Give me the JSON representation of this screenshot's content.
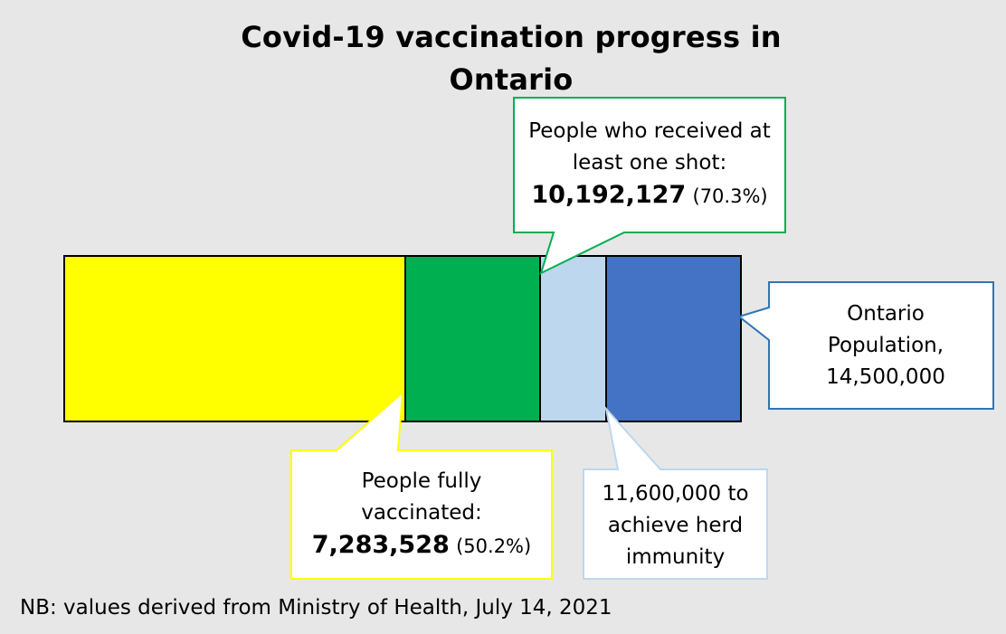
{
  "chart_data": {
    "type": "bar",
    "orientation": "horizontal-stacked",
    "title_lines": [
      "Covid-19 vaccination progress in",
      "Ontario"
    ],
    "segments": [
      {
        "key": "fully_vaccinated",
        "cumulative_value": 7283528,
        "color": "#ffff00"
      },
      {
        "key": "at_least_one_shot",
        "cumulative_value": 10192127,
        "color": "#00b050"
      },
      {
        "key": "herd_immunity_target",
        "cumulative_value": 11600000,
        "color": "#bdd7ee"
      },
      {
        "key": "population",
        "cumulative_value": 14500000,
        "color": "#4472c4"
      }
    ],
    "total": 14500000,
    "annotations": {
      "one_shot": {
        "lines": [
          "People who received at",
          "least one shot:"
        ],
        "value": "10,192,127",
        "pct": "(70.3%)",
        "border_color": "#00b050"
      },
      "population": {
        "lines": [
          "Ontario",
          "Population,",
          "14,500,000"
        ],
        "border_color": "#2e75b6"
      },
      "fully": {
        "lines": [
          "People fully",
          "vaccinated:"
        ],
        "value": "7,283,528",
        "pct": "(50.2%)",
        "border_color": "#ffff00"
      },
      "herd": {
        "lines": [
          "11,600,000 to",
          "achieve herd",
          "immunity"
        ],
        "border_color": "#bdd7ee"
      }
    },
    "note": "NB: values derived from Ministry of Health, July 14, 2021"
  }
}
